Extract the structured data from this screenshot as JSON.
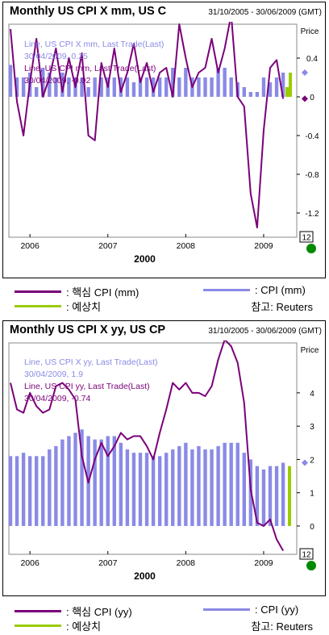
{
  "chart_data": [
    {
      "type": "line",
      "title": "Monthly US CPI X mm, US C",
      "date_range": "31/10/2005 - 30/06/2009 (GMT)",
      "y_axis_title": "Price",
      "ylim": [
        -1.45,
        0.75
      ],
      "y_ticks": [
        0.4,
        0,
        -0.4,
        -0.8,
        -1.2
      ],
      "y_tick_labels": [
        "0.4",
        "0",
        "-0.4",
        "-0.8",
        "-1.2"
      ],
      "x_tick_labels": [
        "2006",
        "2007",
        "2008",
        "2009"
      ],
      "x_sub_label": "2000",
      "period_badge": "12",
      "info_lines": [
        {
          "text": "Line, US CPI X mm, Last Trade(Last)",
          "color": "#8a8ae6"
        },
        {
          "text": "30/04/2009, 0.25",
          "color": "#8a8ae6"
        },
        {
          "text": "Line, US CPI mm, Last Trade(Last)",
          "color": "#7a007a"
        },
        {
          "text": "30/04/2009, -0.02",
          "color": "#7a007a"
        }
      ],
      "markers": [
        {
          "value": 0.25,
          "color": "#8a8ae6"
        },
        {
          "value": -0.02,
          "color": "#7a007a"
        }
      ],
      "x_dates": [
        "2005-10",
        "2005-11",
        "2005-12",
        "2006-01",
        "2006-02",
        "2006-03",
        "2006-04",
        "2006-05",
        "2006-06",
        "2006-07",
        "2006-08",
        "2006-09",
        "2006-10",
        "2006-11",
        "2006-12",
        "2007-01",
        "2007-02",
        "2007-03",
        "2007-04",
        "2007-05",
        "2007-06",
        "2007-07",
        "2007-08",
        "2007-09",
        "2007-10",
        "2007-11",
        "2007-12",
        "2008-01",
        "2008-02",
        "2008-03",
        "2008-04",
        "2008-05",
        "2008-06",
        "2008-07",
        "2008-08",
        "2008-09",
        "2008-10",
        "2008-11",
        "2008-12",
        "2009-01",
        "2009-02",
        "2009-03",
        "2009-04"
      ],
      "series": [
        {
          "name": "CPI (mm)",
          "style": "bar",
          "color": "#8a8ae6",
          "values": [
            0.33,
            0.2,
            0.2,
            0.25,
            0.1,
            0.3,
            0.25,
            0.2,
            0.25,
            0.2,
            0.2,
            0.2,
            0.1,
            0.2,
            0.2,
            0.2,
            0.2,
            0.2,
            0.2,
            0.15,
            0.2,
            0.2,
            0.2,
            0.2,
            0.2,
            0.3,
            0.2,
            0.3,
            0.2,
            0.2,
            0.2,
            0.2,
            0.3,
            0.3,
            0.2,
            0.15,
            0.1,
            0.05,
            0.05,
            0.2,
            0.15,
            0.2,
            0.25
          ]
        },
        {
          "name": "핵심 CPI (mm)",
          "style": "line",
          "color": "#7a007a",
          "values": [
            0.7,
            -0.05,
            -0.4,
            0.15,
            0.6,
            0.0,
            0.2,
            0.5,
            0.05,
            0.4,
            0.1,
            0.45,
            -0.4,
            -0.45,
            0.35,
            0.1,
            0.5,
            0.05,
            0.25,
            0.55,
            0.15,
            0.35,
            0.05,
            0.25,
            0.3,
            0.0,
            0.75,
            0.4,
            0.1,
            0.25,
            0.3,
            0.6,
            0.25,
            0.5,
            0.85,
            0.0,
            -0.1,
            -1.0,
            -1.35,
            -0.35,
            0.3,
            0.38,
            -0.02
          ]
        },
        {
          "name": "예상치",
          "style": "bar",
          "color": "#99cc00",
          "values": [
            0.1,
            0.25
          ]
        }
      ]
    },
    {
      "type": "line",
      "title": "Monthly US CPI X yy, US CP",
      "date_range": "31/10/2005 - 30/06/2009 (GMT)",
      "y_axis_title": "Price",
      "ylim": [
        -0.85,
        5.5
      ],
      "y_ticks": [
        4,
        3,
        2,
        1,
        0
      ],
      "y_tick_labels": [
        "4",
        "3",
        "2",
        "1",
        "0"
      ],
      "x_tick_labels": [
        "2006",
        "2007",
        "2008",
        "2009"
      ],
      "x_sub_label": "2000",
      "period_badge": "12",
      "info_lines": [
        {
          "text": "Line, US CPI X yy, Last Trade(Last)",
          "color": "#8a8ae6"
        },
        {
          "text": "30/04/2009, 1.9",
          "color": "#8a8ae6"
        },
        {
          "text": "Line, US CPI yy, Last Trade(Last)",
          "color": "#7a007a"
        },
        {
          "text": "30/04/2009, -0.74",
          "color": "#7a007a"
        }
      ],
      "markers": [
        {
          "value": 1.9,
          "color": "#8a8ae6"
        }
      ],
      "x_dates": [
        "2005-10",
        "2005-11",
        "2005-12",
        "2006-01",
        "2006-02",
        "2006-03",
        "2006-04",
        "2006-05",
        "2006-06",
        "2006-07",
        "2006-08",
        "2006-09",
        "2006-10",
        "2006-11",
        "2006-12",
        "2007-01",
        "2007-02",
        "2007-03",
        "2007-04",
        "2007-05",
        "2007-06",
        "2007-07",
        "2007-08",
        "2007-09",
        "2007-10",
        "2007-11",
        "2007-12",
        "2008-01",
        "2008-02",
        "2008-03",
        "2008-04",
        "2008-05",
        "2008-06",
        "2008-07",
        "2008-08",
        "2008-09",
        "2008-10",
        "2008-11",
        "2008-12",
        "2009-01",
        "2009-02",
        "2009-03",
        "2009-04"
      ],
      "series": [
        {
          "name": "CPI (yy)",
          "style": "bar",
          "color": "#8a8ae6",
          "values": [
            2.1,
            2.1,
            2.2,
            2.1,
            2.1,
            2.1,
            2.3,
            2.4,
            2.6,
            2.7,
            2.8,
            2.9,
            2.7,
            2.6,
            2.6,
            2.7,
            2.7,
            2.5,
            2.3,
            2.2,
            2.2,
            2.2,
            2.1,
            2.1,
            2.2,
            2.3,
            2.4,
            2.5,
            2.3,
            2.4,
            2.3,
            2.3,
            2.4,
            2.5,
            2.5,
            2.5,
            2.2,
            2.0,
            1.8,
            1.7,
            1.8,
            1.8,
            1.9
          ]
        },
        {
          "name": "핵심 CPI (yy)",
          "style": "line",
          "color": "#7a007a",
          "values": [
            4.3,
            3.5,
            3.4,
            4.0,
            3.6,
            3.4,
            3.5,
            4.2,
            4.3,
            4.1,
            3.8,
            2.1,
            1.3,
            2.0,
            2.5,
            2.1,
            2.4,
            2.8,
            2.6,
            2.7,
            2.7,
            2.4,
            2.0,
            2.8,
            3.5,
            4.3,
            4.1,
            4.3,
            4.0,
            4.0,
            3.9,
            4.2,
            5.0,
            5.6,
            5.4,
            4.9,
            3.7,
            1.1,
            0.1,
            0.0,
            0.2,
            -0.4,
            -0.74
          ]
        },
        {
          "name": "예상치",
          "style": "bar",
          "color": "#99cc00",
          "values": [
            1.8
          ]
        }
      ]
    }
  ],
  "legends": [
    {
      "items": [
        {
          "label": ": 핵심 CPI (mm)",
          "color": "#7a007a"
        },
        {
          "label": ": CPI (mm)",
          "color": "#8a8ae6"
        },
        {
          "label": ": 예상치",
          "color": "#99cc00"
        }
      ],
      "source": "참고: Reuters"
    },
    {
      "items": [
        {
          "label": ": 핵심 CPI (yy)",
          "color": "#7a007a"
        },
        {
          "label": ": CPI (yy)",
          "color": "#8a8ae6"
        },
        {
          "label": ": 예상치",
          "color": "#99cc00"
        }
      ],
      "source": "참고: Reuters"
    }
  ]
}
